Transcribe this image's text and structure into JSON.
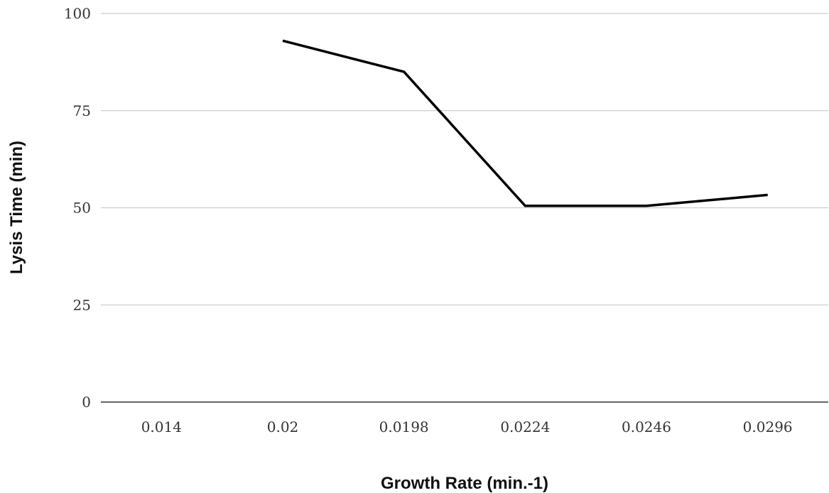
{
  "chart_data": {
    "type": "line",
    "title": "",
    "xlabel": "Growth Rate (min.-1)",
    "ylabel": "Lysis Time (min)",
    "categories": [
      "0.014",
      "0.02",
      "0.0198",
      "0.0224",
      "0.0246",
      "0.0296"
    ],
    "series": [
      {
        "color": "#000000",
        "values": [
          null,
          93,
          85,
          50.5,
          50.5,
          53.3
        ]
      }
    ],
    "ylim": [
      0,
      100
    ],
    "yticks": [
      0,
      25,
      50,
      75,
      100
    ],
    "grid": true,
    "legend": "none"
  }
}
